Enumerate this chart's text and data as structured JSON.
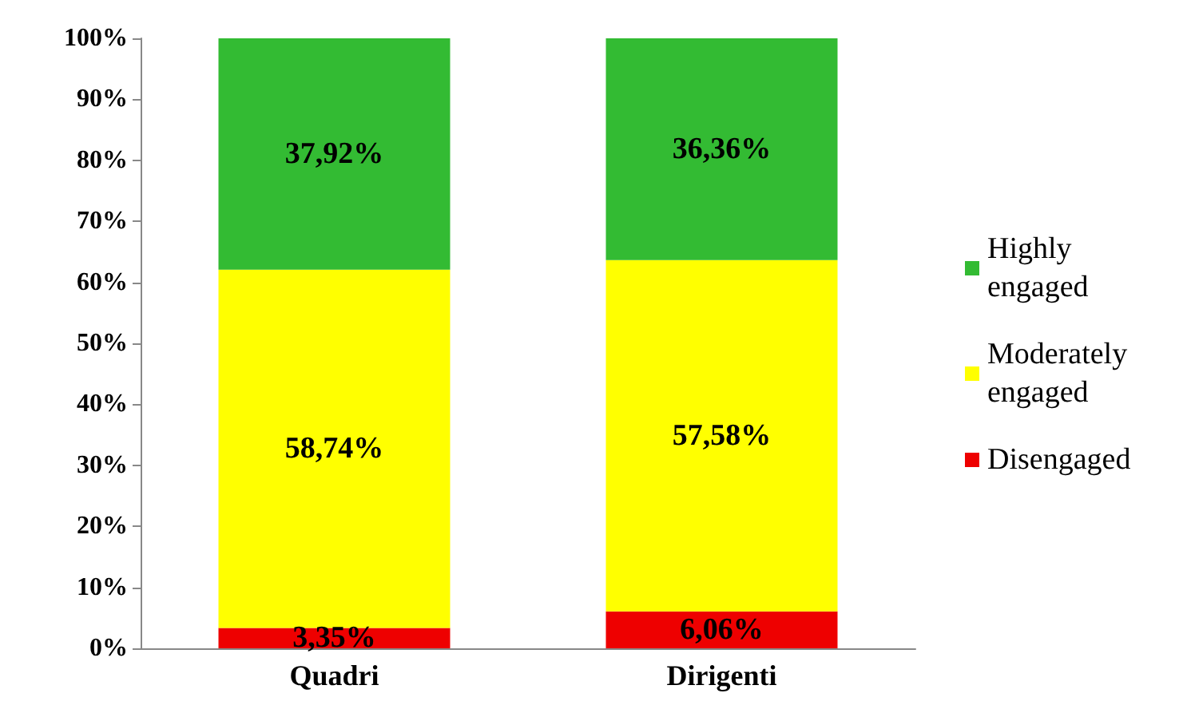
{
  "chart_data": {
    "type": "bar",
    "stacked": true,
    "categories": [
      "Quadri",
      "Dirigenti"
    ],
    "series": [
      {
        "name": "Disengaged",
        "color": "#ee0000",
        "values": [
          3.35,
          6.06
        ],
        "value_labels": [
          "3,35%",
          "6,06%"
        ]
      },
      {
        "name": "Moderately engaged",
        "color": "#ffff00",
        "values": [
          58.74,
          57.58
        ],
        "value_labels": [
          "58,74%",
          "57,58%"
        ]
      },
      {
        "name": "Highly engaged",
        "color": "#33bb33",
        "values": [
          37.92,
          36.36
        ],
        "value_labels": [
          "37,92%",
          "36,36%"
        ]
      }
    ],
    "ylim": [
      0,
      100
    ],
    "yticks": [
      {
        "value": 0,
        "label": "0%"
      },
      {
        "value": 10,
        "label": "10%"
      },
      {
        "value": 20,
        "label": "20%"
      },
      {
        "value": 30,
        "label": "30%"
      },
      {
        "value": 40,
        "label": "40%"
      },
      {
        "value": 50,
        "label": "50%"
      },
      {
        "value": 60,
        "label": "60%"
      },
      {
        "value": 70,
        "label": "70%"
      },
      {
        "value": 80,
        "label": "80%"
      },
      {
        "value": 90,
        "label": "90%"
      },
      {
        "value": 100,
        "label": "100%"
      }
    ],
    "grid": false,
    "legend": "right"
  }
}
